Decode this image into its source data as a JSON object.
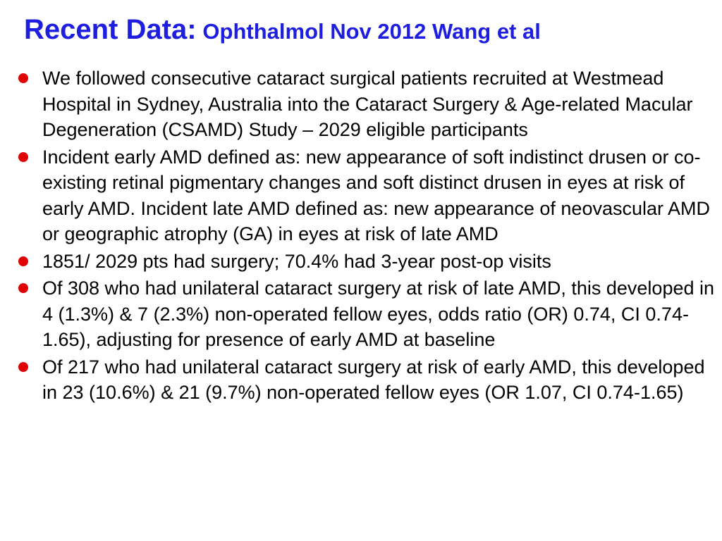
{
  "slide": {
    "title": {
      "main": "Recent Data:",
      "sub": "Ophthalmol Nov 2012 Wang et al"
    },
    "bullets": [
      {
        "text": "We followed consecutive cataract surgical patients recruited at Westmead Hospital in Sydney, Australia into the Cataract Surgery & Age-related Macular Degeneration (CSAMD) Study – 2029 eligible participants"
      },
      {
        "text": "Incident early AMD defined as: new appearance of soft indistinct drusen or co-existing retinal pigmentary changes and soft distinct drusen in eyes at risk of early AMD. Incident late AMD defined as: new appearance of neovascular AMD or geographic atrophy (GA) in eyes at risk of late AMD"
      },
      {
        "text": "1851/ 2029 pts had surgery; 70.4% had 3-year post-op visits"
      },
      {
        "text": "Of 308 who had unilateral cataract surgery at risk of late AMD, this developed in 4 (1.3%) & 7 (2.3%) non-operated fellow eyes, odds ratio (OR) 0.74, CI 0.74-1.65), adjusting for presence of early AMD at baseline"
      },
      {
        "text": "Of 217 who had unilateral cataract surgery at risk of early AMD, this developed in 23 (10.6%) & 21 (9.7%) non-operated fellow eyes (OR 1.07, CI 0.74-1.65)"
      }
    ]
  },
  "colors": {
    "title": "#1e1ee0",
    "bullet": "#e00000",
    "text": "#000000",
    "background": "#ffffff"
  }
}
